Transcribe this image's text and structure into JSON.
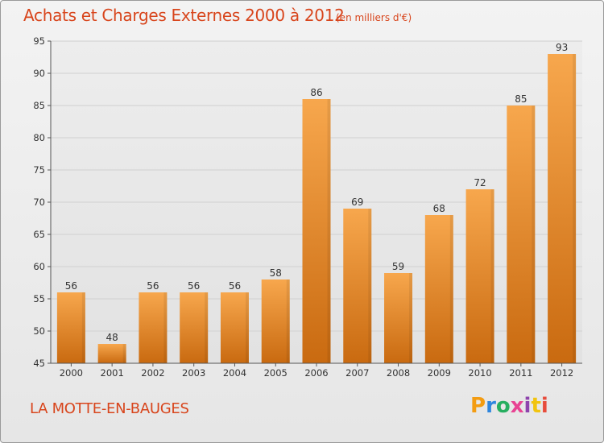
{
  "header": {
    "title": "Achats et Charges Externes 2000 à 2012",
    "subtitle": "(en milliers d'€)"
  },
  "footer": {
    "location": "LA MOTTE-EN-BAUGES",
    "brand": "Proxiti",
    "brand_colors": [
      "#f39c12",
      "#2e86de",
      "#27ae60",
      "#e84393",
      "#8e44ad",
      "#f1c40f",
      "#e74c3c"
    ]
  },
  "colors": {
    "bar_light": "#f7a74d",
    "bar_dark": "#c96a10",
    "text_accent": "#d8451c",
    "grid": "#d0d0d0"
  },
  "chart_data": {
    "type": "bar",
    "categories": [
      "2000",
      "2001",
      "2002",
      "2003",
      "2004",
      "2005",
      "2006",
      "2007",
      "2008",
      "2009",
      "2010",
      "2011",
      "2012"
    ],
    "values": [
      56,
      48,
      56,
      56,
      56,
      58,
      86,
      69,
      59,
      68,
      72,
      85,
      93
    ],
    "title": "Achats et Charges Externes 2000 à 2012",
    "subtitle": "(en milliers d'€)",
    "xlabel": "",
    "ylabel": "",
    "ylim": [
      45,
      95
    ],
    "yticks": [
      45,
      50,
      55,
      60,
      65,
      70,
      75,
      80,
      85,
      90,
      95
    ],
    "grid": true,
    "data_labels": true
  }
}
